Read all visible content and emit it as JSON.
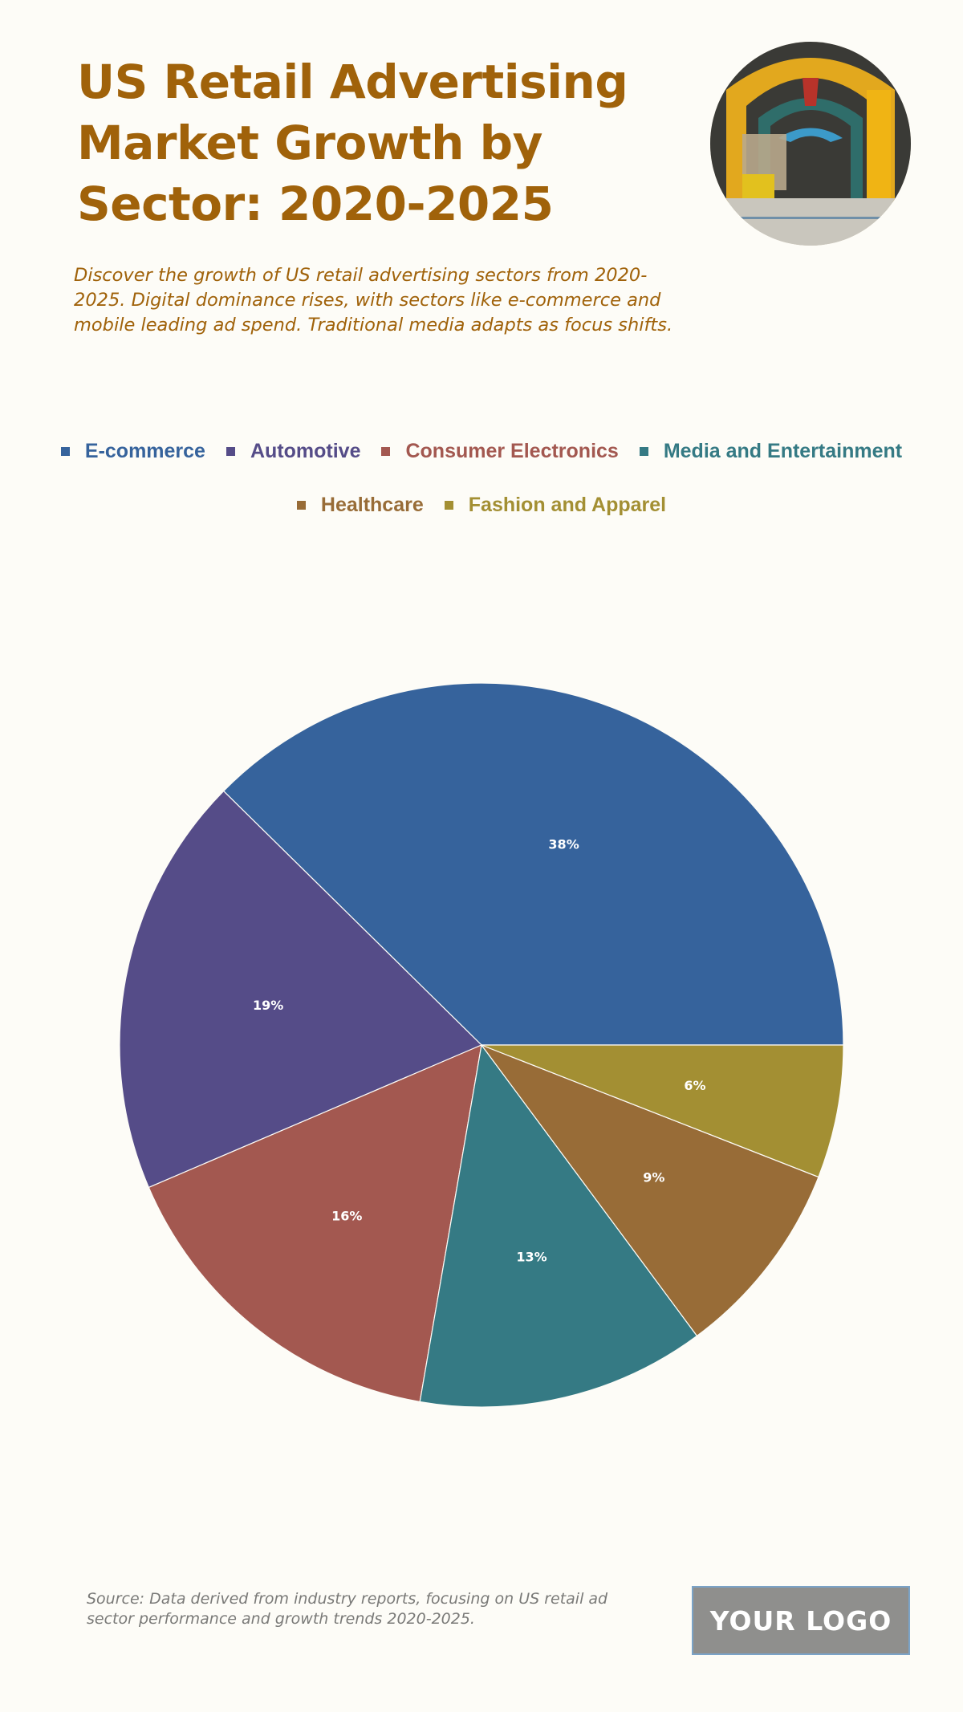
{
  "header": {
    "title": "US Retail Advertising Market Growth by Sector: 2020-2025",
    "subtitle": "Discover the growth of US retail advertising sectors from 2020-2025. Digital dominance rises, with sectors like e-commerce and mobile leading ad spend. Traditional media adapts as focus shifts.",
    "image": "storefront-arcade-photo"
  },
  "legend": {
    "row1": [
      {
        "label": "E-commerce",
        "color": "#36639C"
      },
      {
        "label": "Automotive",
        "color": "#554C88"
      },
      {
        "label": "Consumer Electronics",
        "color": "#A35850"
      },
      {
        "label": "Media and Entertainment",
        "color": "#357A84"
      }
    ],
    "row2": [
      {
        "label": "Healthcare",
        "color": "#986C37"
      },
      {
        "label": "Fashion and Apparel",
        "color": "#A38F33"
      }
    ]
  },
  "chart_data": {
    "type": "pie",
    "title": "US Retail Advertising Market Growth by Sector: 2020-2025",
    "categories": [
      "E-commerce",
      "Automotive",
      "Consumer Electronics",
      "Media and Entertainment",
      "Healthcare",
      "Fashion and Apparel"
    ],
    "values": [
      38,
      19,
      16,
      13,
      9,
      6
    ],
    "labels": [
      "38%",
      "19%",
      "16%",
      "13%",
      "9%",
      "6%"
    ],
    "colors": [
      "#36639C",
      "#554C88",
      "#A35850",
      "#357A84",
      "#986C37",
      "#A38F33"
    ],
    "start_angle": "3 o'clock, counterclockwise",
    "legend_position": "top"
  },
  "footer": {
    "source": "Source: Data derived from industry reports, focusing on US retail ad sector performance and growth trends 2020-2025.",
    "logo": "YOUR LOGO"
  }
}
